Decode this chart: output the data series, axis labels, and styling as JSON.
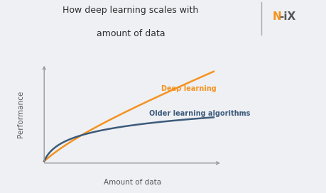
{
  "title_line1": "How deep learning scales with",
  "title_line2": "amount of data",
  "xlabel": "Amount of data",
  "ylabel": "Performance",
  "bg_color": "#eef0f4",
  "deep_learning_color": "#f5921e",
  "older_algo_color": "#3d5a7a",
  "deep_learning_label": "Deep learning",
  "older_algo_label": "Older learning algorithms",
  "axis_color": "#999999",
  "title_color": "#2e2e2e",
  "label_color": "#555555",
  "logo_n_color": "#f5921e",
  "logo_ix_color": "#555555",
  "separator_color": "#aaaaaa"
}
